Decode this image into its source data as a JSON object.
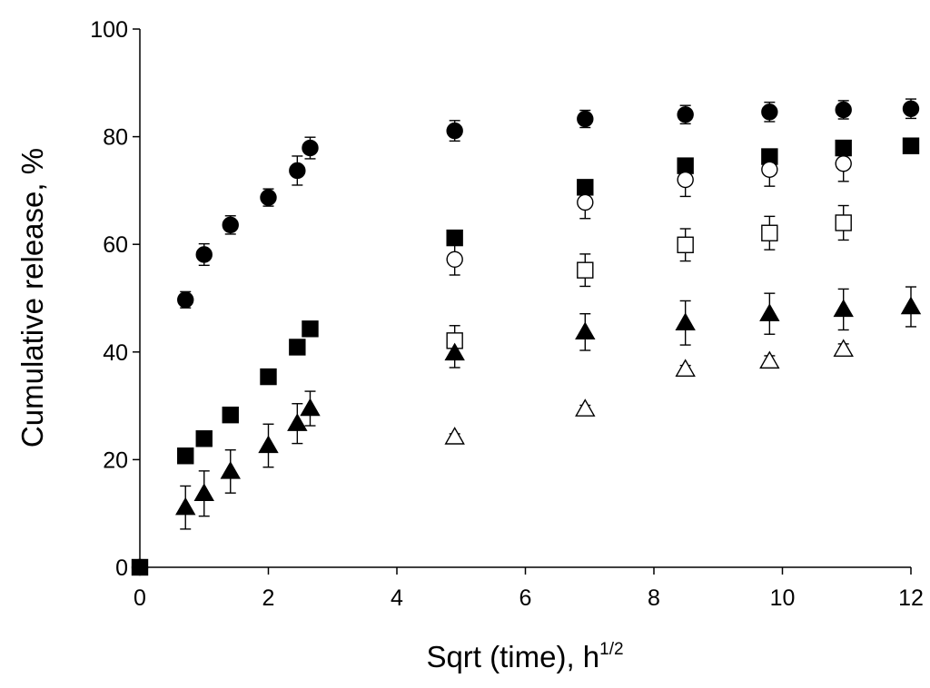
{
  "chart_data": {
    "type": "scatter",
    "title": "",
    "xlabel": "Sqrt (time), h",
    "xlabel_superscript": "1/2",
    "ylabel": "Cumulative release,  %",
    "xlim": [
      0,
      12
    ],
    "ylim": [
      0,
      100
    ],
    "xticks": [
      0,
      2,
      4,
      6,
      8,
      10,
      12
    ],
    "yticks": [
      0,
      20,
      40,
      60,
      80,
      100
    ],
    "grid": false,
    "legend": "none",
    "series": [
      {
        "marker": "circle-filled",
        "points": [
          {
            "x": 0,
            "y": 0,
            "err": 0
          },
          {
            "x": 0.71,
            "y": 49.7,
            "err": 1.5
          },
          {
            "x": 1.0,
            "y": 58.1,
            "err": 2.0
          },
          {
            "x": 1.41,
            "y": 63.6,
            "err": 1.7
          },
          {
            "x": 2.0,
            "y": 68.7,
            "err": 1.6
          },
          {
            "x": 2.45,
            "y": 73.7,
            "err": 2.7
          },
          {
            "x": 2.65,
            "y": 77.9,
            "err": 2.0
          },
          {
            "x": 4.9,
            "y": 81.1,
            "err": 1.9
          },
          {
            "x": 6.93,
            "y": 83.3,
            "err": 1.6
          },
          {
            "x": 8.49,
            "y": 84.1,
            "err": 1.7
          },
          {
            "x": 9.8,
            "y": 84.6,
            "err": 1.8
          },
          {
            "x": 10.95,
            "y": 85.0,
            "err": 1.7
          },
          {
            "x": 12.0,
            "y": 85.2,
            "err": 1.8
          }
        ]
      },
      {
        "marker": "square-filled",
        "points": [
          {
            "x": 0,
            "y": 0,
            "err": 0
          },
          {
            "x": 0.71,
            "y": 20.7,
            "err": 0
          },
          {
            "x": 1.0,
            "y": 23.9,
            "err": 0
          },
          {
            "x": 1.41,
            "y": 28.3,
            "err": 0
          },
          {
            "x": 2.0,
            "y": 35.4,
            "err": 0
          },
          {
            "x": 2.45,
            "y": 40.9,
            "err": 0
          },
          {
            "x": 2.65,
            "y": 44.3,
            "err": 0
          },
          {
            "x": 4.9,
            "y": 61.2,
            "err": 0
          },
          {
            "x": 6.93,
            "y": 70.6,
            "err": 0
          },
          {
            "x": 8.49,
            "y": 74.6,
            "err": 0
          },
          {
            "x": 9.8,
            "y": 76.3,
            "err": 0
          },
          {
            "x": 10.95,
            "y": 77.9,
            "err": 0
          },
          {
            "x": 12.0,
            "y": 78.3,
            "err": 0
          }
        ]
      },
      {
        "marker": "circle-open",
        "points": [
          {
            "x": 4.9,
            "y": 57.2,
            "err": 2.9
          },
          {
            "x": 6.93,
            "y": 67.8,
            "err": 3.0
          },
          {
            "x": 8.49,
            "y": 72.0,
            "err": 3.1
          },
          {
            "x": 9.8,
            "y": 73.9,
            "err": 3.1
          },
          {
            "x": 10.95,
            "y": 75.0,
            "err": 3.3
          }
        ]
      },
      {
        "marker": "square-open",
        "points": [
          {
            "x": 4.9,
            "y": 42.1,
            "err": 2.8
          },
          {
            "x": 6.93,
            "y": 55.2,
            "err": 3.0
          },
          {
            "x": 8.49,
            "y": 59.9,
            "err": 3.0
          },
          {
            "x": 9.8,
            "y": 62.1,
            "err": 3.1
          },
          {
            "x": 10.95,
            "y": 64.0,
            "err": 3.2
          }
        ]
      },
      {
        "marker": "triangle-filled",
        "points": [
          {
            "x": 0.71,
            "y": 11.1,
            "err": 4.0
          },
          {
            "x": 1.0,
            "y": 13.7,
            "err": 4.2
          },
          {
            "x": 1.41,
            "y": 17.8,
            "err": 4.0
          },
          {
            "x": 2.0,
            "y": 22.6,
            "err": 4.0
          },
          {
            "x": 2.45,
            "y": 26.7,
            "err": 3.7
          },
          {
            "x": 2.65,
            "y": 29.5,
            "err": 3.2
          },
          {
            "x": 4.9,
            "y": 39.8,
            "err": 2.7
          },
          {
            "x": 6.93,
            "y": 43.7,
            "err": 3.4
          },
          {
            "x": 8.49,
            "y": 45.4,
            "err": 4.1
          },
          {
            "x": 9.8,
            "y": 47.1,
            "err": 3.8
          },
          {
            "x": 10.95,
            "y": 47.9,
            "err": 3.8
          },
          {
            "x": 12.0,
            "y": 48.4,
            "err": 3.7
          }
        ]
      },
      {
        "marker": "triangle-open",
        "points": [
          {
            "x": 4.9,
            "y": 24.2,
            "err": 0.6
          },
          {
            "x": 6.93,
            "y": 29.4,
            "err": 0.7
          },
          {
            "x": 8.49,
            "y": 36.8,
            "err": 0.7
          },
          {
            "x": 9.8,
            "y": 38.3,
            "err": 1.0
          },
          {
            "x": 10.95,
            "y": 40.5,
            "err": 1.0
          }
        ]
      }
    ]
  }
}
